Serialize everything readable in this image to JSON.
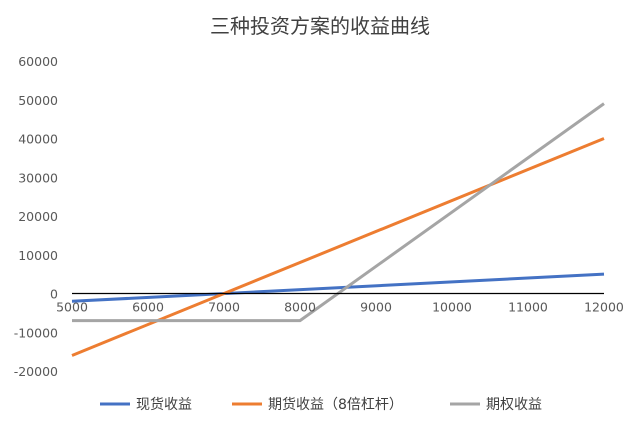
{
  "chart_data": {
    "type": "line",
    "title": "三种投资方案的收益曲线",
    "xlabel": "",
    "ylabel": "",
    "x_ticks": [
      5000,
      6000,
      7000,
      8000,
      9000,
      10000,
      11000,
      12000
    ],
    "y_ticks": [
      -20000,
      -10000,
      0,
      10000,
      20000,
      30000,
      40000,
      50000,
      60000
    ],
    "xlim": [
      5000,
      12000
    ],
    "ylim": [
      -20000,
      60000
    ],
    "grid": false,
    "legend": "bottom",
    "series": [
      {
        "name": "现货收益",
        "color": "#4472C4",
        "x": [
          5000,
          12000
        ],
        "y": [
          -2000,
          5000
        ]
      },
      {
        "name": "期货收益（8倍杠杆）",
        "color": "#ED7D31",
        "x": [
          5000,
          12000
        ],
        "y": [
          -16000,
          40000
        ]
      },
      {
        "name": "期权收益",
        "color": "#A5A5A5",
        "x": [
          5000,
          8000,
          12000
        ],
        "y": [
          -7000,
          -7000,
          49000
        ]
      }
    ]
  }
}
